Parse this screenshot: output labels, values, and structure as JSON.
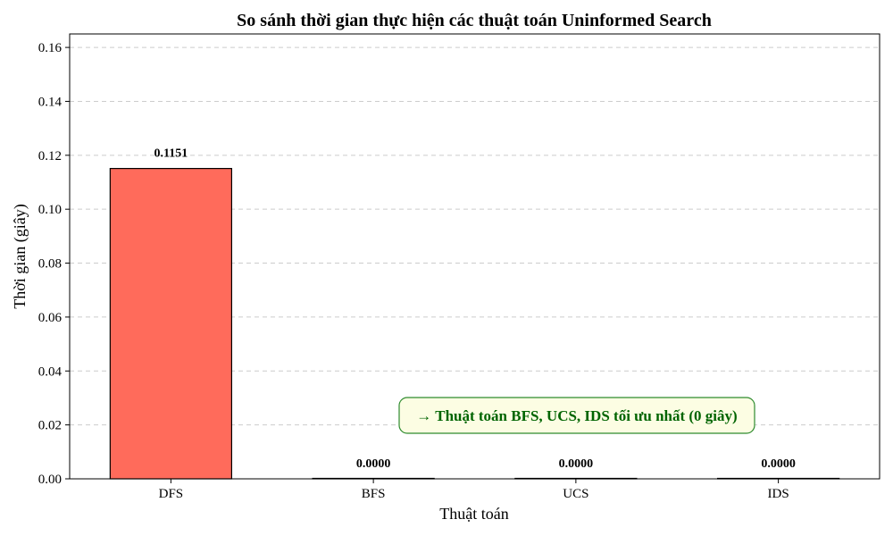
{
  "chart_data": {
    "type": "bar",
    "title": "So sánh thời gian thực hiện các thuật toán Uninformed Search",
    "xlabel": "Thuật toán",
    "ylabel": "Thời gian (giây)",
    "categories": [
      "DFS",
      "BFS",
      "UCS",
      "IDS"
    ],
    "values": [
      0.1151,
      0.0,
      0.0,
      0.0
    ],
    "value_labels": [
      "0.1151",
      "0.0000",
      "0.0000",
      "0.0000"
    ],
    "bar_colors": [
      "#ff6b5b",
      "#ff6b5b",
      "#ff6b5b",
      "#ff6b5b"
    ],
    "ylim": [
      0,
      0.165
    ],
    "yticks": [
      0.0,
      0.02,
      0.04,
      0.06,
      0.08,
      0.1,
      0.12,
      0.14,
      0.16
    ],
    "ytick_labels": [
      "0.00",
      "0.02",
      "0.04",
      "0.06",
      "0.08",
      "0.10",
      "0.12",
      "0.14",
      "0.16"
    ],
    "grid": "y-dashed",
    "annotation": {
      "text": "→ Thuật toán BFS, UCS, IDS tối ưu nhất (0 giây)",
      "text_color": "#006400",
      "box_fill": "#fcfde3",
      "box_stroke": "#2e8b2e"
    }
  }
}
